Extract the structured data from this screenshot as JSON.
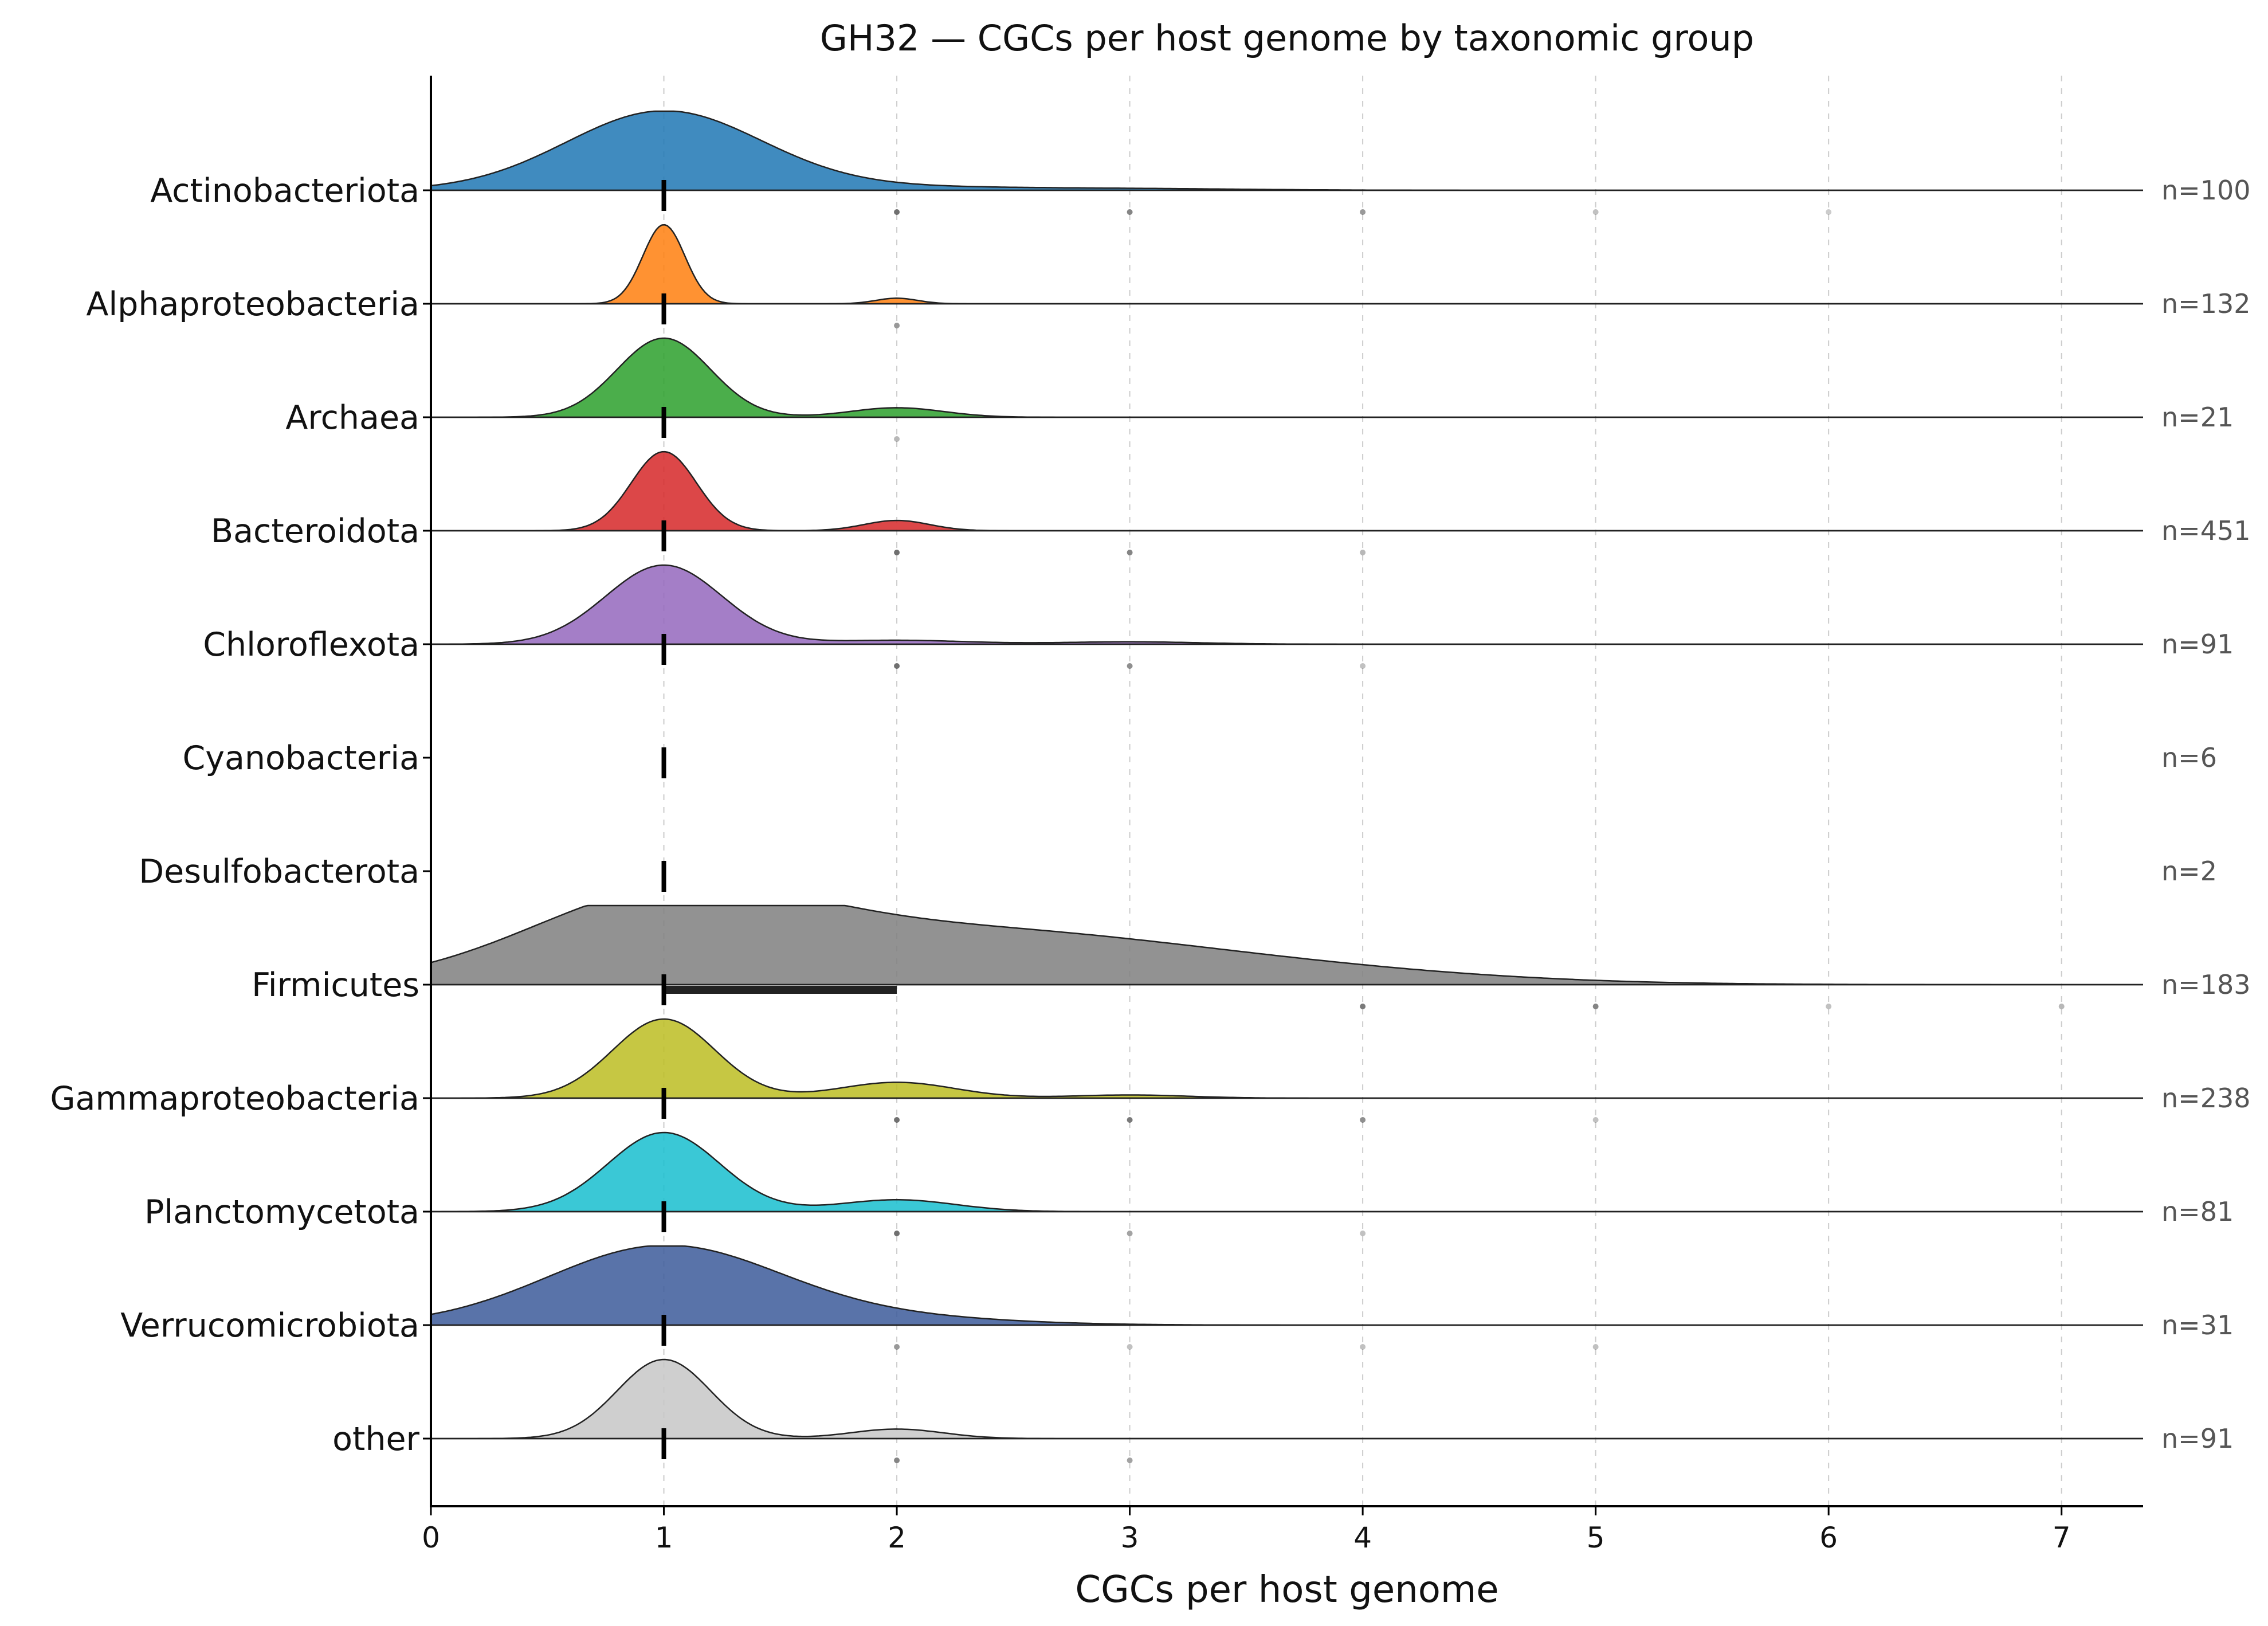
{
  "chart_data": {
    "type": "ridgeline",
    "title": "GH32 — CGCs per host genome by taxonomic group",
    "xlabel": "CGCs per host genome",
    "ylabel": "",
    "xlim": [
      0,
      7.35
    ],
    "xticks": [
      0,
      1,
      2,
      3,
      4,
      5,
      6,
      7
    ],
    "grid": "vertical dashed",
    "groups": [
      {
        "name": "Actinobacteriota",
        "n_label": "n=100",
        "color": "#1f77b4",
        "median": 1,
        "density": [
          [
            1,
            1.0,
            0.42
          ],
          [
            2,
            0.04,
            0.5
          ],
          [
            3,
            0.02,
            0.5
          ]
        ],
        "iqr": null,
        "outliers": [
          2,
          3,
          4,
          5,
          6
        ],
        "outlier_alpha": [
          0.7,
          0.6,
          0.5,
          0.3,
          0.25
        ]
      },
      {
        "name": "Alphaproteobacteria",
        "n_label": "n=132",
        "color": "#ff7f0e",
        "median": 1,
        "density": [
          [
            1,
            1.0,
            0.09
          ],
          [
            2,
            0.07,
            0.09
          ]
        ],
        "iqr": null,
        "outliers": [
          2
        ],
        "outlier_alpha": [
          0.5
        ]
      },
      {
        "name": "Archaea",
        "n_label": "n=21",
        "color": "#2ca02c",
        "median": 1,
        "density": [
          [
            1,
            1.0,
            0.2
          ],
          [
            2,
            0.12,
            0.2
          ]
        ],
        "iqr": null,
        "outliers": [
          2
        ],
        "outlier_alpha": [
          0.35
        ]
      },
      {
        "name": "Bacteroidota",
        "n_label": "n=451",
        "color": "#d62728",
        "median": 1,
        "density": [
          [
            1,
            1.0,
            0.14
          ],
          [
            2,
            0.13,
            0.14
          ]
        ],
        "iqr": null,
        "outliers": [
          2,
          3,
          4
        ],
        "outlier_alpha": [
          0.7,
          0.6,
          0.35
        ]
      },
      {
        "name": "Chloroflexota",
        "n_label": "n=91",
        "color": "#9467bd",
        "median": 1,
        "density": [
          [
            1,
            1.0,
            0.25
          ],
          [
            2,
            0.05,
            0.3
          ],
          [
            3,
            0.03,
            0.3
          ]
        ],
        "iqr": null,
        "outliers": [
          2,
          3,
          4
        ],
        "outlier_alpha": [
          0.7,
          0.55,
          0.3
        ]
      },
      {
        "name": "Cyanobacteria",
        "n_label": "n=6",
        "color": "#8c564b",
        "median": 1,
        "density": [],
        "iqr": null,
        "outliers": [],
        "outlier_alpha": []
      },
      {
        "name": "Desulfobacterota",
        "n_label": "n=2",
        "color": "#e377c2",
        "median": 1,
        "density": [],
        "iqr": null,
        "outliers": [],
        "outlier_alpha": []
      },
      {
        "name": "Firmicutes",
        "n_label": "n=183",
        "color": "#7f7f7f",
        "median": 1,
        "density": [
          [
            1,
            1.0,
            0.6
          ],
          [
            2.2,
            0.6,
            0.9
          ],
          [
            3.5,
            0.2,
            0.9
          ]
        ],
        "iqr": [
          1,
          2
        ],
        "outliers": [
          4,
          5,
          6,
          7
        ],
        "outlier_alpha": [
          0.65,
          0.6,
          0.3,
          0.35
        ]
      },
      {
        "name": "Gammaproteobacteria",
        "n_label": "n=238",
        "color": "#bcbd22",
        "median": 1,
        "density": [
          [
            1,
            1.0,
            0.22
          ],
          [
            2,
            0.2,
            0.25
          ],
          [
            3,
            0.04,
            0.25
          ]
        ],
        "iqr": null,
        "outliers": [
          2,
          3,
          4,
          5
        ],
        "outlier_alpha": [
          0.7,
          0.65,
          0.55,
          0.3
        ]
      },
      {
        "name": "Planctomycetota",
        "n_label": "n=81",
        "color": "#17becf",
        "median": 1,
        "density": [
          [
            1,
            1.0,
            0.24
          ],
          [
            2,
            0.15,
            0.25
          ]
        ],
        "iqr": null,
        "outliers": [
          2,
          3,
          4
        ],
        "outlier_alpha": [
          0.7,
          0.45,
          0.3
        ]
      },
      {
        "name": "Verrucomicrobiota",
        "n_label": "n=31",
        "color": "#3c5b9a",
        "median": 1,
        "density": [
          [
            1,
            1.0,
            0.5
          ],
          [
            2,
            0.08,
            0.5
          ]
        ],
        "iqr": null,
        "outliers": [
          2,
          3,
          4,
          5
        ],
        "outlier_alpha": [
          0.5,
          0.3,
          0.3,
          0.3
        ]
      },
      {
        "name": "other",
        "n_label": "n=91",
        "color": "#c7c7c7",
        "median": 1,
        "density": [
          [
            1,
            1.0,
            0.2
          ],
          [
            2,
            0.12,
            0.2
          ]
        ],
        "iqr": null,
        "outliers": [
          2,
          3
        ],
        "outlier_alpha": [
          0.6,
          0.45
        ]
      }
    ]
  }
}
